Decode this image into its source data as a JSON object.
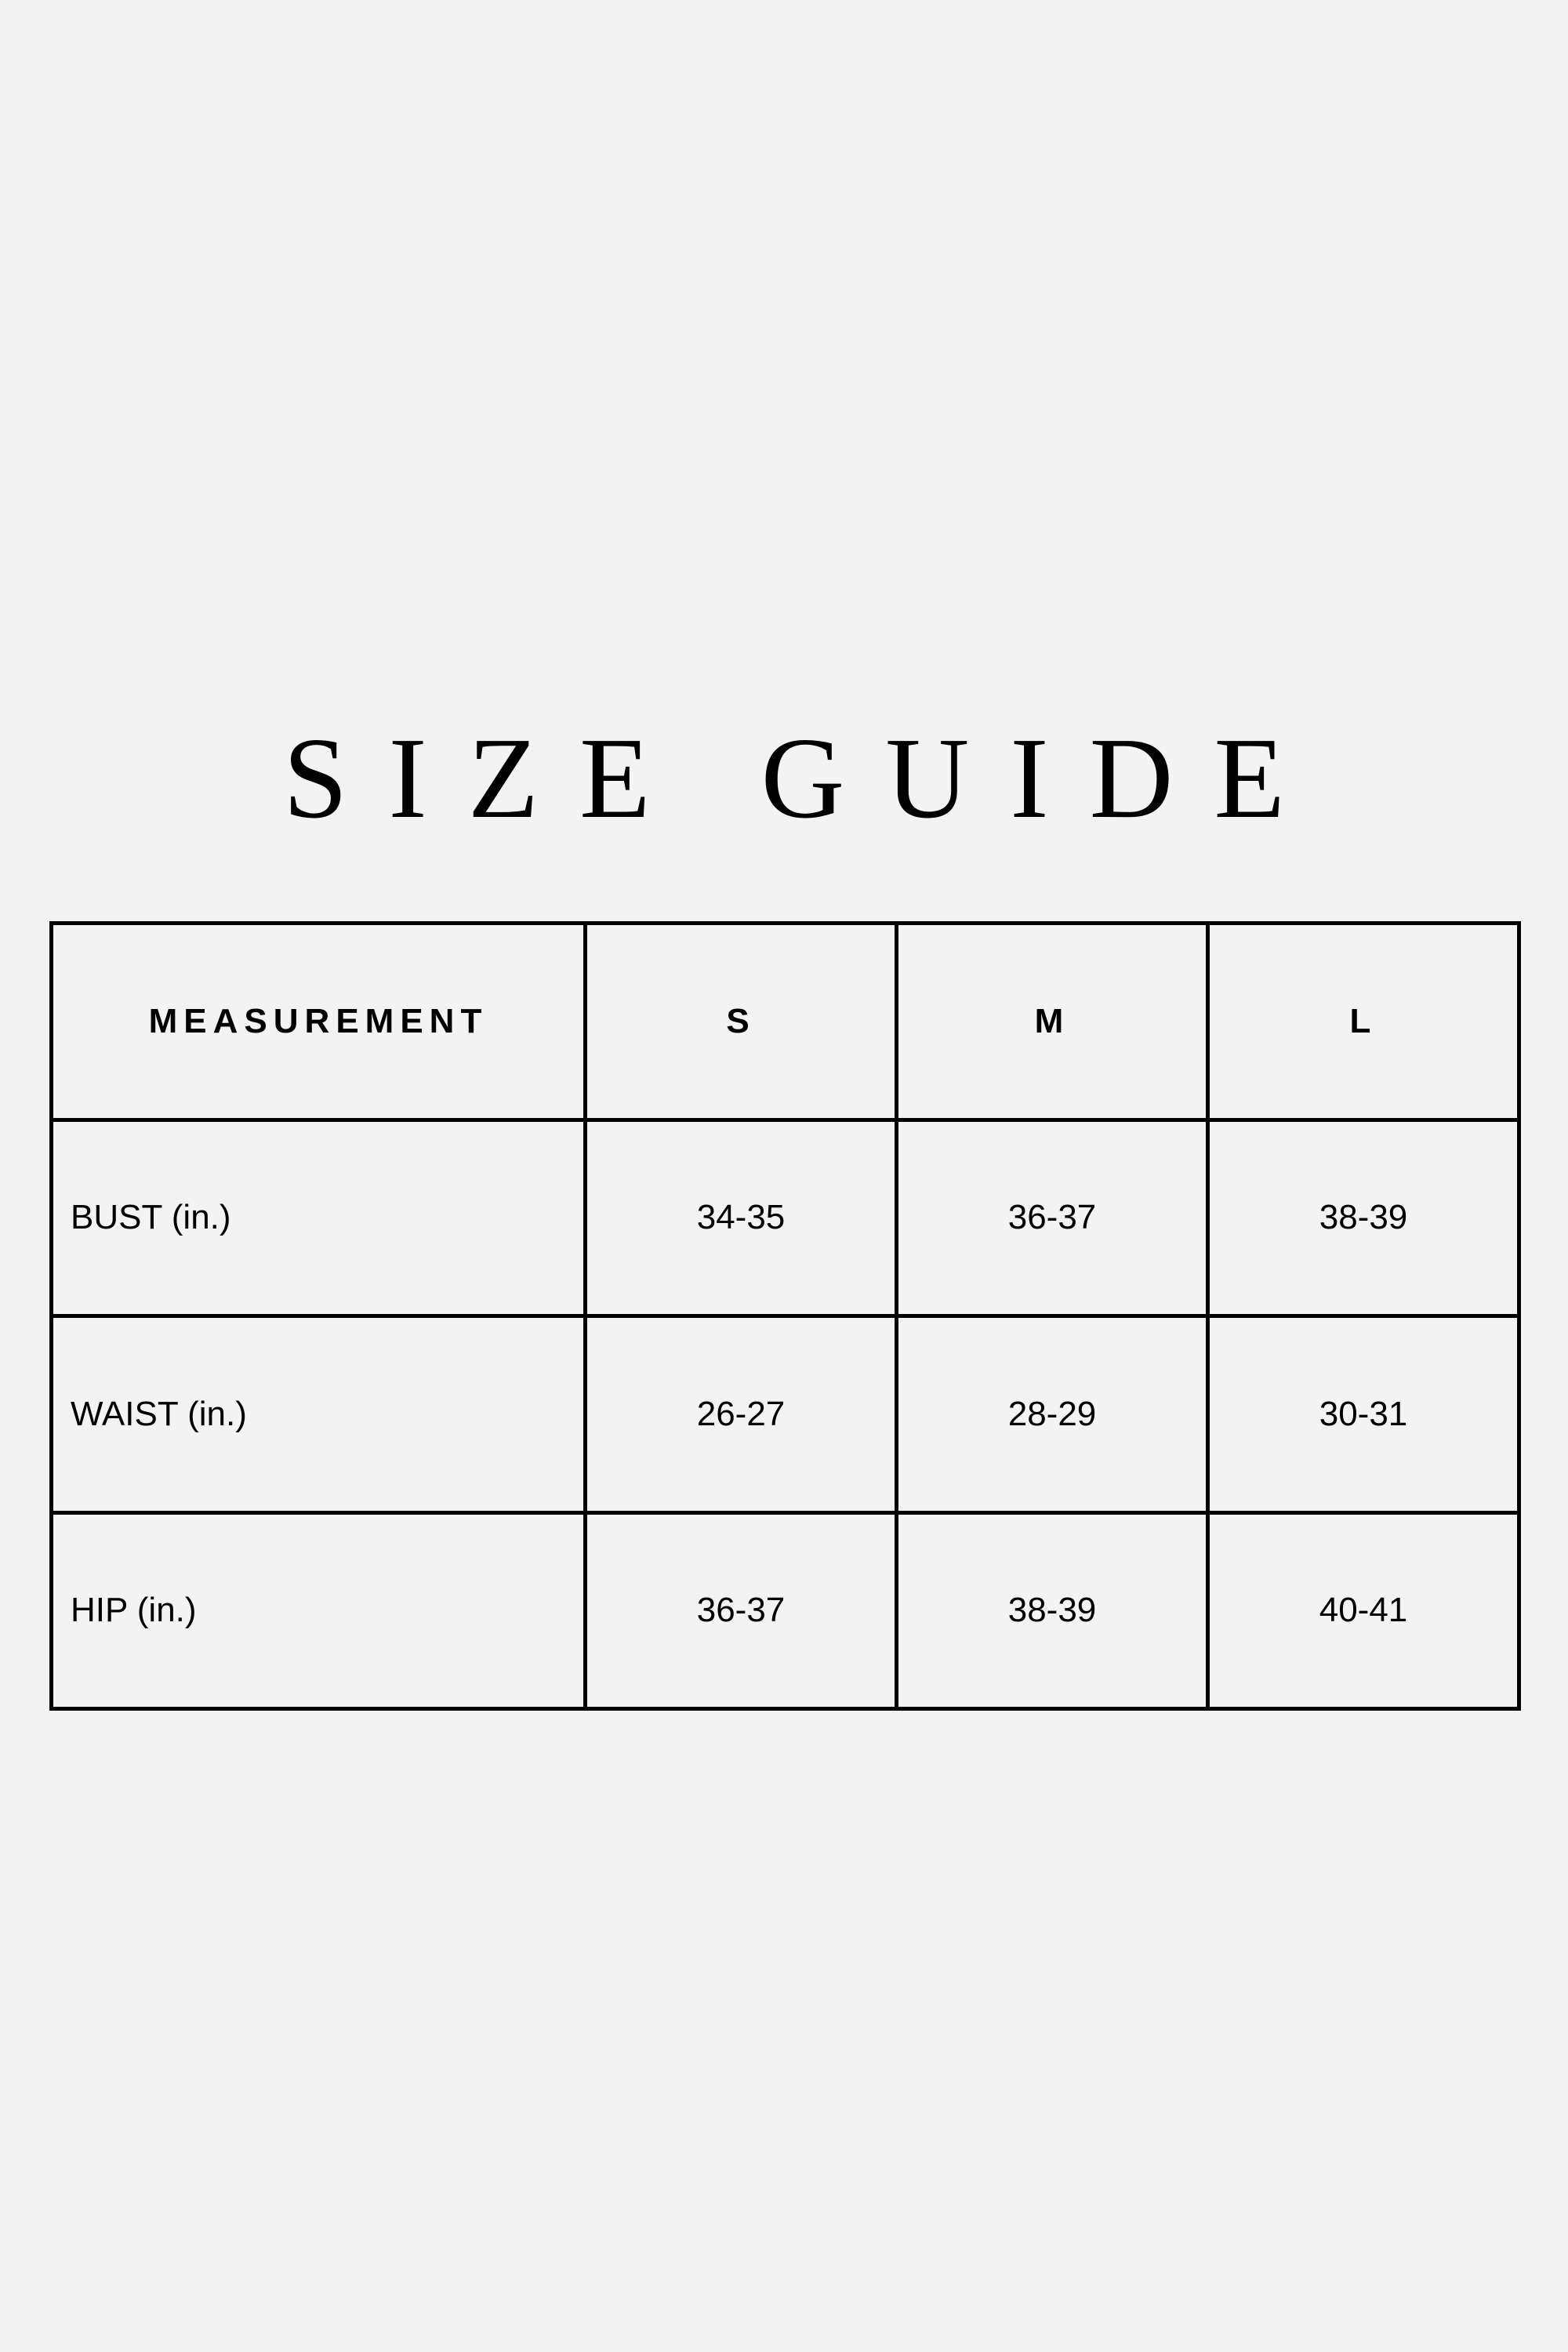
{
  "title": "SIZE GUIDE",
  "table": {
    "headers": [
      "MEASUREMENT",
      "S",
      "M",
      "L"
    ],
    "rows": [
      {
        "label": "BUST (in.)",
        "values": [
          "34-35",
          "36-37",
          "38-39"
        ]
      },
      {
        "label": "WAIST (in.)",
        "values": [
          "26-27",
          "28-29",
          "30-31"
        ]
      },
      {
        "label": "HIP (in.)",
        "values": [
          "36-37",
          "38-39",
          "40-41"
        ]
      }
    ]
  },
  "colors": {
    "background": "#f3f3f3",
    "text": "#000000",
    "border": "#000000"
  }
}
